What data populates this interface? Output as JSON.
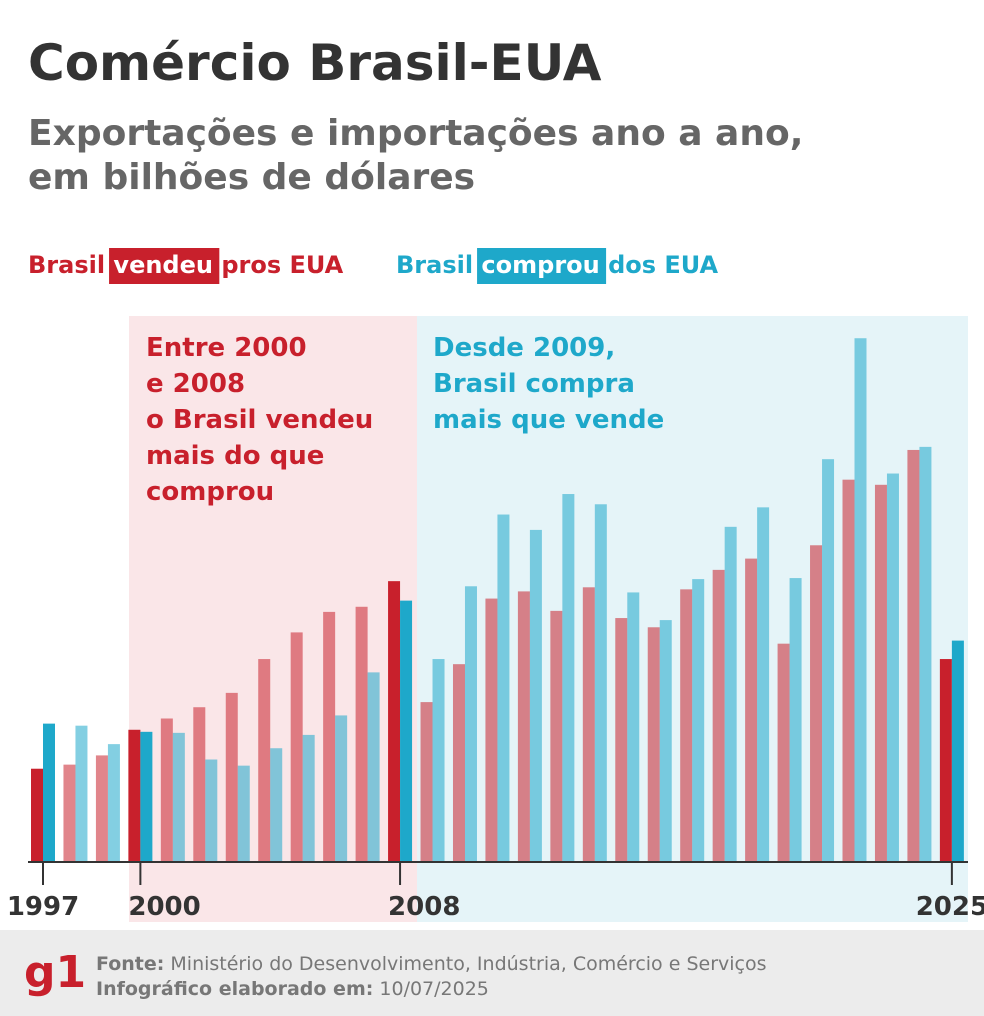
{
  "chart_data": {
    "type": "bar",
    "title": "Comércio Brasil-EUA",
    "subtitle": [
      "Exportações e importações ano a ano,",
      "em bilhões de dólares"
    ],
    "categories": [
      "1997",
      null,
      null,
      "2000",
      null,
      null,
      null,
      null,
      null,
      null,
      null,
      "2008",
      null,
      null,
      null,
      null,
      null,
      null,
      null,
      null,
      null,
      null,
      null,
      null,
      null,
      null,
      null,
      null,
      "2025"
    ],
    "series": [
      {
        "name": "Brasil vendeu pros EUA",
        "color": "#c8202c",
        "values": [
          9.1,
          9.5,
          10.4,
          12.9,
          14.0,
          15.1,
          16.5,
          19.8,
          22.4,
          24.4,
          24.9,
          27.4,
          15.6,
          19.3,
          25.7,
          26.4,
          24.5,
          26.8,
          23.8,
          22.9,
          26.6,
          28.5,
          29.6,
          21.3,
          30.9,
          37.3,
          36.8,
          40.2,
          19.8
        ]
      },
      {
        "name": "Brasil comprou dos EUA",
        "color": "#1ea8ca",
        "values": [
          13.5,
          13.3,
          11.5,
          12.7,
          12.6,
          10.0,
          9.4,
          11.1,
          12.4,
          14.3,
          18.5,
          25.5,
          19.8,
          26.9,
          33.9,
          32.4,
          35.9,
          34.9,
          26.3,
          23.6,
          27.6,
          32.7,
          34.6,
          27.7,
          39.3,
          51.1,
          37.9,
          40.5,
          21.6
        ]
      }
    ],
    "annotations": [
      [
        "Entre 2000",
        "e 2008",
        "o Brasil vendeu",
        "mais do que",
        "comprou"
      ],
      [
        "Desde 2009,",
        "Brasil compra",
        "mais que vende"
      ]
    ],
    "source_label": "Fonte:",
    "source": "Ministério do Desenvolvimento, Indústria, Comércio e Serviços",
    "date_label": "Infográfico elaborado em:",
    "date": "10/07/2025",
    "logo": "g1"
  }
}
